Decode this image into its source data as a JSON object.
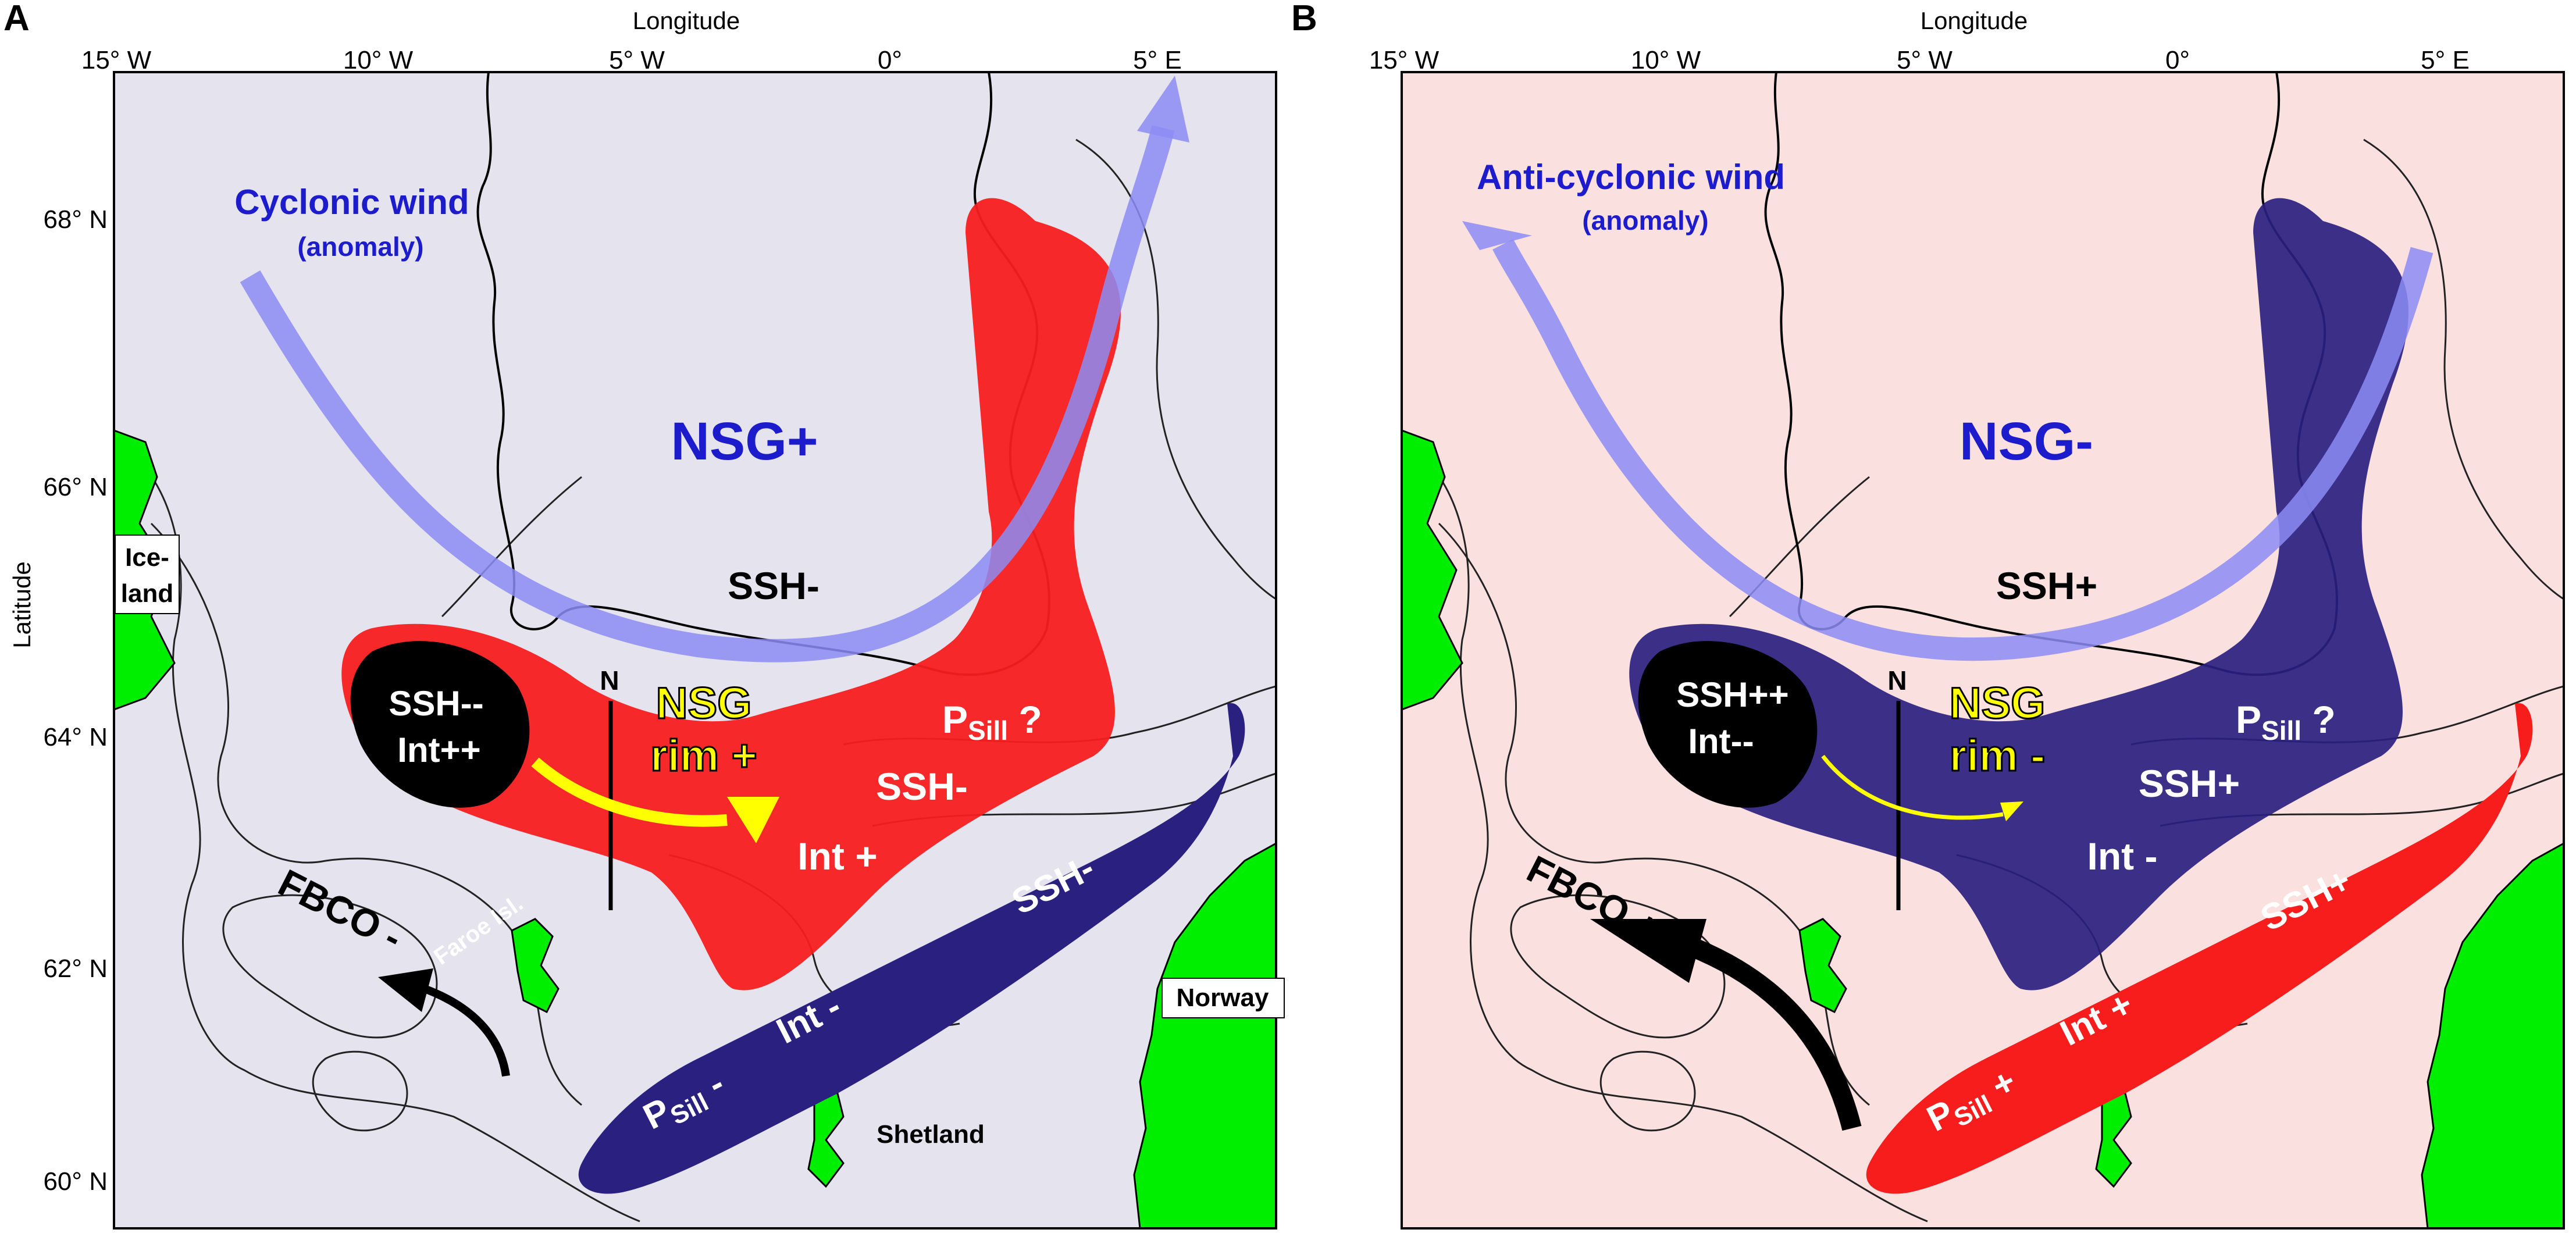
{
  "colors": {
    "panel_a_background": "#e4e3ee",
    "panel_b_background": "#fbe0e0",
    "land_green": "#00ee00",
    "ssh_low_red": "#f71d1d",
    "ssh_high_blue": "#2a2080",
    "wind_arrow": "#8c8cf5",
    "rim_current_yellow": "#ffff00",
    "black_core": "#000000",
    "text_blue": "#1c1ccc"
  },
  "axes": {
    "x_title": "Longitude",
    "y_title": "Latitude",
    "x_ticks": [
      "15° W",
      "10° W",
      "5° W",
      "0°",
      "5° E"
    ],
    "y_ticks": [
      "68° N",
      "66° N",
      "64° N",
      "62° N",
      "60° N"
    ]
  },
  "panels": [
    {
      "letter": "A",
      "wind": {
        "label": "Cyclonic wind",
        "sublabel": "(anomaly)",
        "icon": "wind-arrow-icon"
      },
      "gyre": "NSG+",
      "ssh_center": "SSH-",
      "core": {
        "line1": "SSH--",
        "line2": "Int++"
      },
      "section": "N",
      "rim": {
        "line1": "NSG",
        "line2": "rim +"
      },
      "psill": {
        "p": "P",
        "sub": "Sill",
        "rest": " ?"
      },
      "ssh_rim": "SSH-",
      "int_rim": "Int +",
      "shelf": {
        "ssh": "SSH-",
        "int": "Int -",
        "p": "P",
        "sub": "Sill",
        "rest": " -"
      },
      "fbco": "FBCO -",
      "places": {
        "iceland_1": "Ice-",
        "iceland_2": "land",
        "faroe": "Faroe Isl.",
        "shetland": "Shetland",
        "norway": "Norway"
      }
    },
    {
      "letter": "B",
      "wind": {
        "label": "Anti-cyclonic wind",
        "sublabel": "(anomaly)",
        "icon": "wind-arrow-icon"
      },
      "gyre": "NSG-",
      "ssh_center": "SSH+",
      "core": {
        "line1": "SSH++",
        "line2": "Int--"
      },
      "section": "N",
      "rim": {
        "line1": "NSG",
        "line2": "rim -"
      },
      "psill": {
        "p": "P",
        "sub": "Sill",
        "rest": " ?"
      },
      "ssh_rim": "SSH+",
      "int_rim": "Int -",
      "shelf": {
        "ssh": "SSH+",
        "int": "Int +",
        "p": "P",
        "sub": "Sill",
        "rest": " +"
      },
      "fbco": "FBCO +",
      "places": {}
    }
  ]
}
